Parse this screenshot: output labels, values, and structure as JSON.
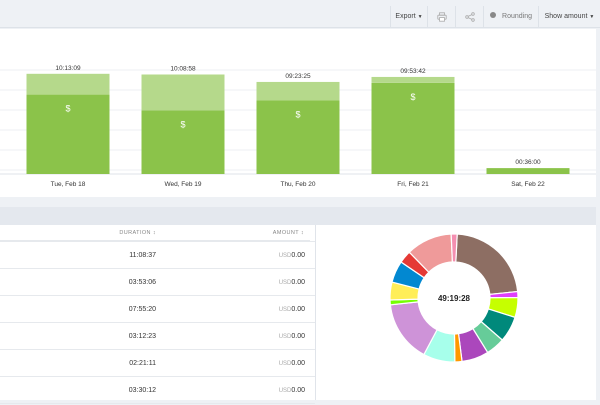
{
  "toolbar": {
    "export_label": "Export",
    "rounding_label": "Rounding",
    "show_amount_label": "Show amount",
    "icons": [
      "printer-icon",
      "share-icon"
    ]
  },
  "chart_data": {
    "type": "bar",
    "categories": [
      "Tue, Feb 18",
      "Wed, Feb 19",
      "Thu, Feb 20",
      "Fri, Feb 21",
      "Sat, Feb 22"
    ],
    "labels": [
      "10:13:09",
      "10:08:58",
      "09:23:25",
      "09:53:42",
      "00:36:00"
    ],
    "series": [
      {
        "values": [
          8.1,
          6.5,
          7.5,
          9.3,
          0.6
        ],
        "color": "#8bc34a"
      },
      {
        "values": [
          2.12,
          3.65,
          1.89,
          0.6,
          0
        ],
        "color": "#b5d98b"
      }
    ],
    "billable_marker": "$",
    "grid": true
  },
  "table": {
    "headers": {
      "duration": "DURATION ↕",
      "amount": "AMOUNT ↕"
    },
    "currency": "USD",
    "rows": [
      {
        "duration": "11:08:37",
        "amount": "0.00"
      },
      {
        "duration": "03:53:06",
        "amount": "0.00"
      },
      {
        "duration": "07:55:20",
        "amount": "0.00"
      },
      {
        "duration": "03:12:23",
        "amount": "0.00"
      },
      {
        "duration": "02:21:11",
        "amount": "0.00"
      },
      {
        "duration": "03:30:12",
        "amount": "0.00"
      }
    ]
  },
  "donut": {
    "center_label": "49:19:28",
    "segments": [
      {
        "value": 22.6,
        "color": "#8d6e63"
      },
      {
        "value": 1.5,
        "color": "#e040fb"
      },
      {
        "value": 5.0,
        "color": "#c6ff00"
      },
      {
        "value": 6.5,
        "color": "#00897b"
      },
      {
        "value": 4.8,
        "color": "#66cc99"
      },
      {
        "value": 6.8,
        "color": "#ab47bc"
      },
      {
        "value": 1.8,
        "color": "#ff9800"
      },
      {
        "value": 8.0,
        "color": "#a7ffeb"
      },
      {
        "value": 15.5,
        "color": "#ce93d8"
      },
      {
        "value": 1.2,
        "color": "#76ff03"
      },
      {
        "value": 4.5,
        "color": "#ffee58"
      },
      {
        "value": 5.5,
        "color": "#0288d1"
      },
      {
        "value": 3.2,
        "color": "#e53935"
      },
      {
        "value": 11.6,
        "color": "#ef9a9a"
      },
      {
        "value": 1.5,
        "color": "#f48fb1"
      }
    ]
  }
}
